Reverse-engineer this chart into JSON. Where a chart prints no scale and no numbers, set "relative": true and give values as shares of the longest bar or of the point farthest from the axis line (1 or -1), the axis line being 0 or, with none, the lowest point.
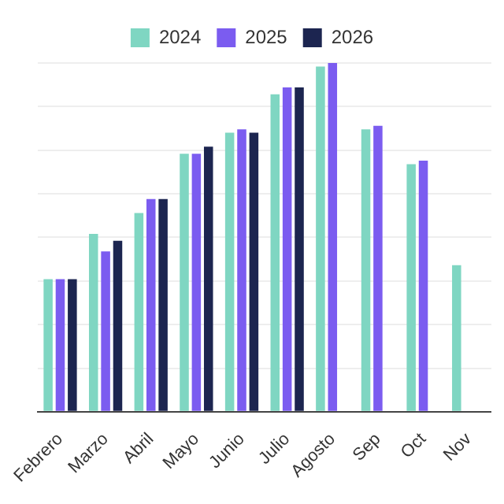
{
  "chart_data": {
    "type": "bar",
    "relative": true,
    "categories": [
      "Febrero",
      "Marzo",
      "Abril",
      "Mayo",
      "Junio",
      "Julio",
      "Agosto",
      "Sep",
      "Oct",
      "Nov"
    ],
    "series": [
      {
        "name": "2024",
        "color": "#7fd6c2",
        "values": [
          0.38,
          0.51,
          0.57,
          0.74,
          0.8,
          0.91,
          0.99,
          0.81,
          0.71,
          0.42
        ]
      },
      {
        "name": "2025",
        "color": "#7b5cf0",
        "values": [
          0.38,
          0.46,
          0.61,
          0.74,
          0.81,
          0.93,
          1,
          0.82,
          0.72,
          null
        ]
      },
      {
        "name": "2026",
        "color": "#1c2550",
        "values": [
          0.38,
          0.49,
          0.61,
          0.76,
          0.8,
          0.93,
          null,
          null,
          null,
          null
        ]
      }
    ],
    "legend": "top",
    "grid": "y"
  }
}
